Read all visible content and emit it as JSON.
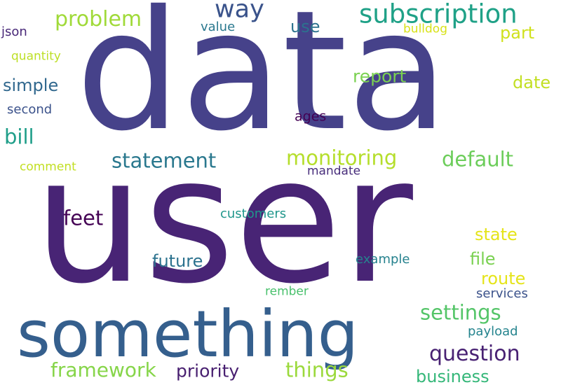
{
  "cloud": {
    "words": [
      {
        "text": "data",
        "color": "#46428a"
      },
      {
        "text": "user",
        "color": "#482475"
      },
      {
        "text": "something",
        "color": "#355f8d"
      },
      {
        "text": "subscription",
        "color": "#1fa187"
      },
      {
        "text": "way",
        "color": "#3a538b"
      },
      {
        "text": "problem",
        "color": "#a0da39"
      },
      {
        "text": "json",
        "color": "#482878"
      },
      {
        "text": "value",
        "color": "#2a788e"
      },
      {
        "text": "use",
        "color": "#2c728e"
      },
      {
        "text": "bulldog",
        "color": "#d8e219"
      },
      {
        "text": "part",
        "color": "#d0e11c"
      },
      {
        "text": "quantity",
        "color": "#bddf26"
      },
      {
        "text": "simple",
        "color": "#31688e"
      },
      {
        "text": "report",
        "color": "#7ad151"
      },
      {
        "text": "date",
        "color": "#c2df23"
      },
      {
        "text": "second",
        "color": "#3b528b"
      },
      {
        "text": "ages",
        "color": "#440154"
      },
      {
        "text": "bill",
        "color": "#1f9e89"
      },
      {
        "text": "statement",
        "color": "#2a788e"
      },
      {
        "text": "monitoring",
        "color": "#b5de2b"
      },
      {
        "text": "default",
        "color": "#6ccd5a"
      },
      {
        "text": "comment",
        "color": "#c2df23"
      },
      {
        "text": "mandate",
        "color": "#472d7b"
      },
      {
        "text": "feet",
        "color": "#440154"
      },
      {
        "text": "customers",
        "color": "#1f968b"
      },
      {
        "text": "state",
        "color": "#e5e419"
      },
      {
        "text": "future",
        "color": "#2c728e"
      },
      {
        "text": "example",
        "color": "#26828e"
      },
      {
        "text": "file",
        "color": "#7ad151"
      },
      {
        "text": "route",
        "color": "#e5e419"
      },
      {
        "text": "rember",
        "color": "#4ac16d"
      },
      {
        "text": "services",
        "color": "#3b528b"
      },
      {
        "text": "settings",
        "color": "#54c568"
      },
      {
        "text": "payload",
        "color": "#25848e"
      },
      {
        "text": "question",
        "color": "#482173"
      },
      {
        "text": "framework",
        "color": "#86d549"
      },
      {
        "text": "priority",
        "color": "#481f70"
      },
      {
        "text": "things",
        "color": "#9bd93c"
      },
      {
        "text": "business",
        "color": "#35b779"
      }
    ]
  }
}
